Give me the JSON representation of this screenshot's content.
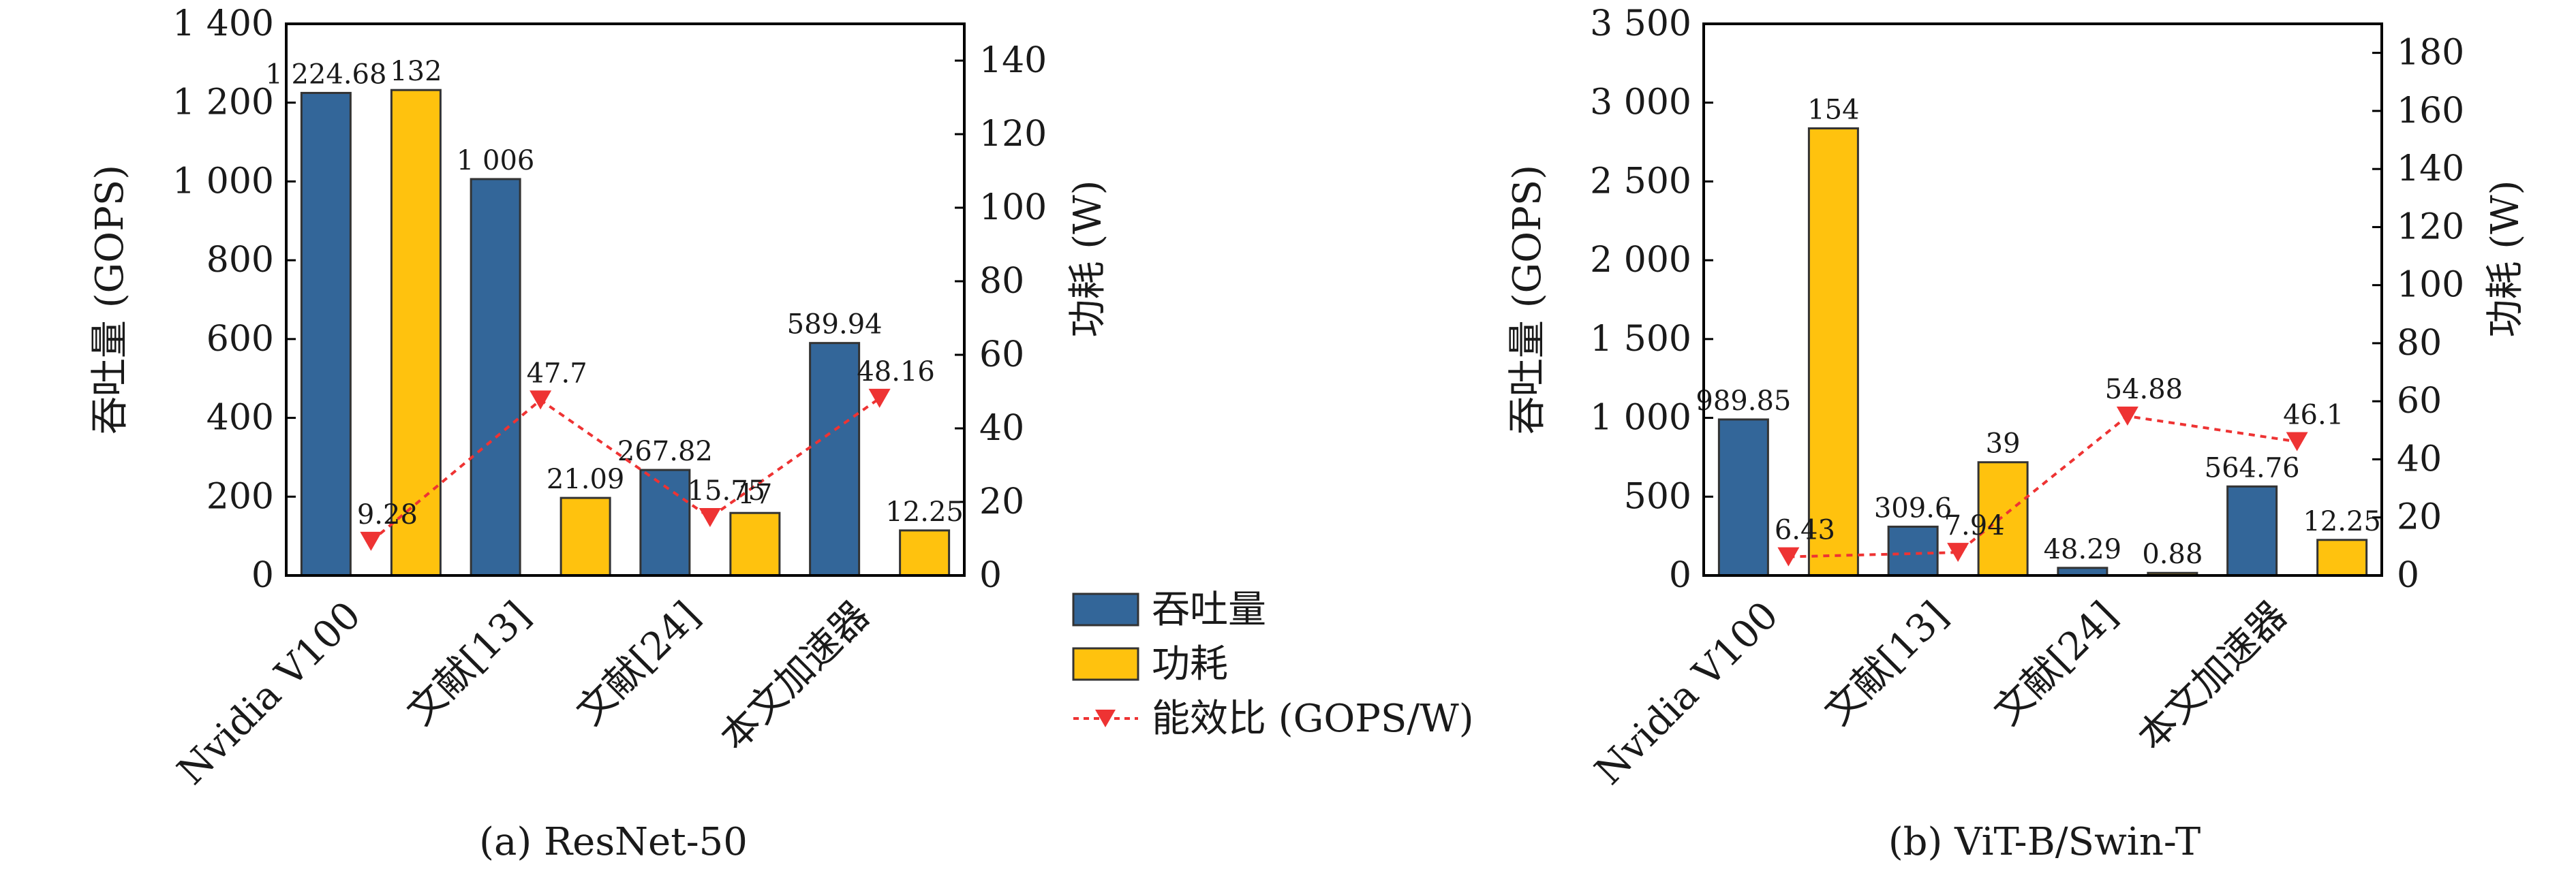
{
  "chart_data": [
    {
      "type": "bar",
      "caption": "(a) ResNet-50",
      "categories": [
        "Nvidia V100",
        "文献[13]",
        "文献[24]",
        "本文加速器"
      ],
      "ylabel": "吞吐量 (GOPS)",
      "y2label": "功耗 (W)",
      "ylim": [
        0,
        1400
      ],
      "y2lim": [
        0,
        150
      ],
      "yticks": [
        0,
        200,
        400,
        600,
        800,
        1000,
        1200,
        1400
      ],
      "yticklabels": [
        "0",
        "200",
        "400",
        "600",
        "800",
        "1 000",
        "1 200",
        "1 400"
      ],
      "y2ticks": [
        0,
        20,
        40,
        60,
        80,
        100,
        120,
        140
      ],
      "series": [
        {
          "name": "吞吐量",
          "kind": "bar",
          "axis": "left",
          "color": "#336699",
          "values": [
            1224.68,
            1006,
            267.82,
            589.94
          ],
          "labels": [
            "1 224.68",
            "1 006",
            "267.82",
            "589.94"
          ]
        },
        {
          "name": "功耗",
          "kind": "bar",
          "axis": "right",
          "color": "#FFC20E",
          "values": [
            132,
            21.09,
            17,
            12.25
          ],
          "labels": [
            "132",
            "21.09",
            "17",
            "12.25"
          ]
        },
        {
          "name": "能效比 (GOPS/W)",
          "kind": "line",
          "axis": "right",
          "color": "#EE3333",
          "values": [
            9.28,
            47.7,
            15.75,
            48.16
          ],
          "labels": [
            "9.28",
            "47.7",
            "15.75",
            "48.16"
          ]
        }
      ]
    },
    {
      "type": "bar",
      "caption": "(b) ViT-B/Swin-T",
      "categories": [
        "Nvidia V100",
        "文献[13]",
        "文献[24]",
        "本文加速器"
      ],
      "ylabel": "吞吐量 (GOPS)",
      "y2label": "功耗 (W)",
      "ylim": [
        0,
        3500
      ],
      "y2lim": [
        0,
        190
      ],
      "yticks": [
        0,
        500,
        1000,
        1500,
        2000,
        2500,
        3000,
        3500
      ],
      "yticklabels": [
        "0",
        "500",
        "1 000",
        "1 500",
        "2 000",
        "2 500",
        "3 000",
        "3 500"
      ],
      "y2ticks": [
        0,
        20,
        40,
        60,
        80,
        100,
        120,
        140,
        160,
        180
      ],
      "series": [
        {
          "name": "吞吐量",
          "kind": "bar",
          "axis": "left",
          "color": "#336699",
          "values": [
            989.85,
            309.6,
            48.29,
            564.76
          ],
          "labels": [
            "989.85",
            "309.6",
            "48.29",
            "564.76"
          ]
        },
        {
          "name": "功耗",
          "kind": "bar",
          "axis": "right",
          "color": "#FFC20E",
          "values": [
            154,
            39,
            0.88,
            12.25
          ],
          "labels": [
            "154",
            "39",
            "0.88",
            "12.25"
          ]
        },
        {
          "name": "能效比 (GOPS/W)",
          "kind": "line",
          "axis": "right",
          "color": "#EE3333",
          "values": [
            6.43,
            7.94,
            54.88,
            46.1
          ],
          "labels": [
            "6.43",
            "7.94",
            "54.88",
            "46.1"
          ]
        }
      ]
    }
  ],
  "legend": {
    "placement": "bottom-center",
    "items": [
      "吞吐量",
      "功耗",
      "能效比 (GOPS/W)"
    ]
  }
}
